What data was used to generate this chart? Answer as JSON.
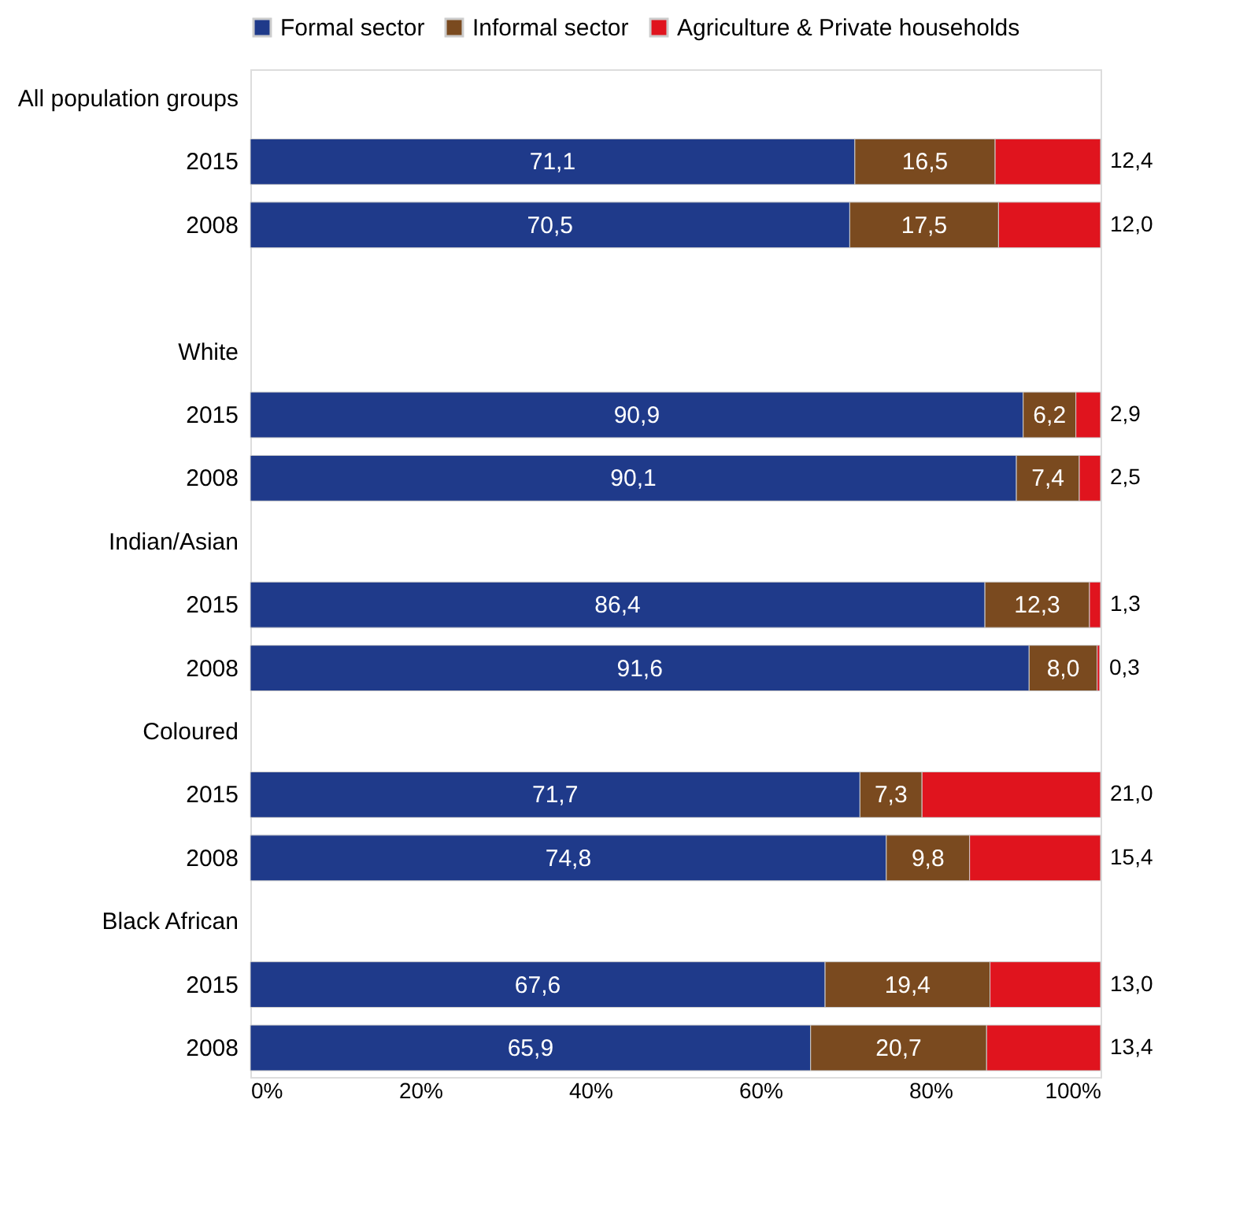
{
  "chart_data": {
    "type": "bar",
    "orientation": "horizontal",
    "stacked": true,
    "categories": [
      "All population groups",
      "2015",
      "2008",
      null,
      "White",
      "2015",
      "2008",
      "Indian/Asian",
      "2015",
      "2008",
      "Coloured",
      "2015",
      "2008",
      "Black African",
      "2015",
      "2008"
    ],
    "series": [
      {
        "name": "Formal sector",
        "color": "#1f3a8a",
        "values": [
          null,
          71.1,
          70.5,
          null,
          null,
          90.9,
          90.1,
          null,
          86.4,
          91.6,
          null,
          71.7,
          74.8,
          null,
          67.6,
          65.9
        ],
        "value_labels": [
          null,
          "71,1",
          "70,5",
          null,
          null,
          "90,9",
          "90,1",
          null,
          "86,4",
          "91,6",
          null,
          "71,7",
          "74,8",
          null,
          "67,6",
          "65,9"
        ]
      },
      {
        "name": "Informal sector",
        "color": "#7a4a1f",
        "values": [
          null,
          16.5,
          17.5,
          null,
          null,
          6.2,
          7.4,
          null,
          12.3,
          8.0,
          null,
          7.3,
          9.8,
          null,
          19.4,
          20.7
        ],
        "value_labels": [
          null,
          "16,5",
          "17,5",
          null,
          null,
          "6,2",
          "7,4",
          null,
          "12,3",
          "8,0",
          null,
          "7,3",
          "9,8",
          null,
          "19,4",
          "20,7"
        ]
      },
      {
        "name": "Agriculture & Private households",
        "color": "#e0141e",
        "values": [
          null,
          12.4,
          12.0,
          null,
          null,
          2.9,
          2.5,
          null,
          1.3,
          0.3,
          null,
          21.0,
          15.4,
          null,
          13.0,
          13.4
        ],
        "value_labels": [
          null,
          "12,4",
          "12,0",
          null,
          null,
          "2,9",
          "2,5",
          null,
          "1,3",
          "0,3",
          null,
          "21,0",
          "15,4",
          null,
          "13,0",
          "13,4"
        ]
      }
    ],
    "xlim": [
      0,
      100
    ],
    "xticks": [
      {
        "value": 0,
        "label": "0%"
      },
      {
        "value": 20,
        "label": "20%"
      },
      {
        "value": 40,
        "label": "40%"
      },
      {
        "value": 60,
        "label": "60%"
      },
      {
        "value": 80,
        "label": "80%"
      },
      {
        "value": 100,
        "label": "100%"
      }
    ],
    "legend": "top",
    "grid": false
  }
}
